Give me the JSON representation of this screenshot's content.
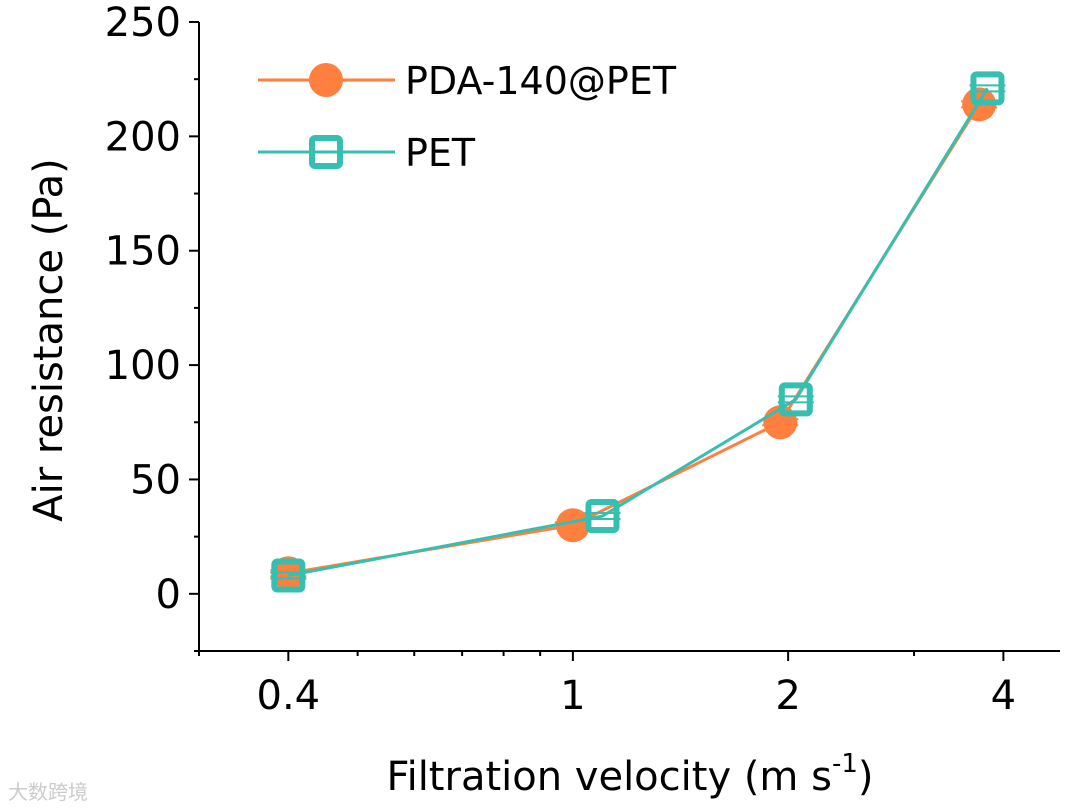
{
  "chart_data": {
    "type": "line",
    "title": "",
    "xlabel": "Filtration velocity (m s",
    "xlabel_sup": "-1",
    "xlabel_end": ")",
    "ylabel": "Air resistance (Pa)",
    "xscale": "log",
    "xlim": [
      0.3,
      4.8
    ],
    "ylim": [
      -25,
      250
    ],
    "xticks": [
      0.4,
      1,
      2,
      4
    ],
    "xtick_labels": [
      "0.4",
      "1",
      "2",
      "4"
    ],
    "yticks": [
      0,
      50,
      100,
      150,
      200,
      250
    ],
    "ytick_labels": [
      "0",
      "50",
      "100",
      "150",
      "200",
      "250"
    ],
    "grid": false,
    "legend_position": "top-left",
    "series": [
      {
        "name": "PDA-140@PET",
        "color": "#ff7f3f",
        "marker": "circle",
        "x": [
          0.4,
          1,
          1.95,
          3.7
        ],
        "y": [
          9,
          30,
          75,
          214
        ]
      },
      {
        "name": "PET",
        "color": "#35bfb0",
        "marker": "square-open",
        "x": [
          0.4,
          1.1,
          2.05,
          3.8
        ],
        "y": [
          8,
          34,
          85,
          221
        ]
      }
    ]
  },
  "watermark": "大数跨境"
}
